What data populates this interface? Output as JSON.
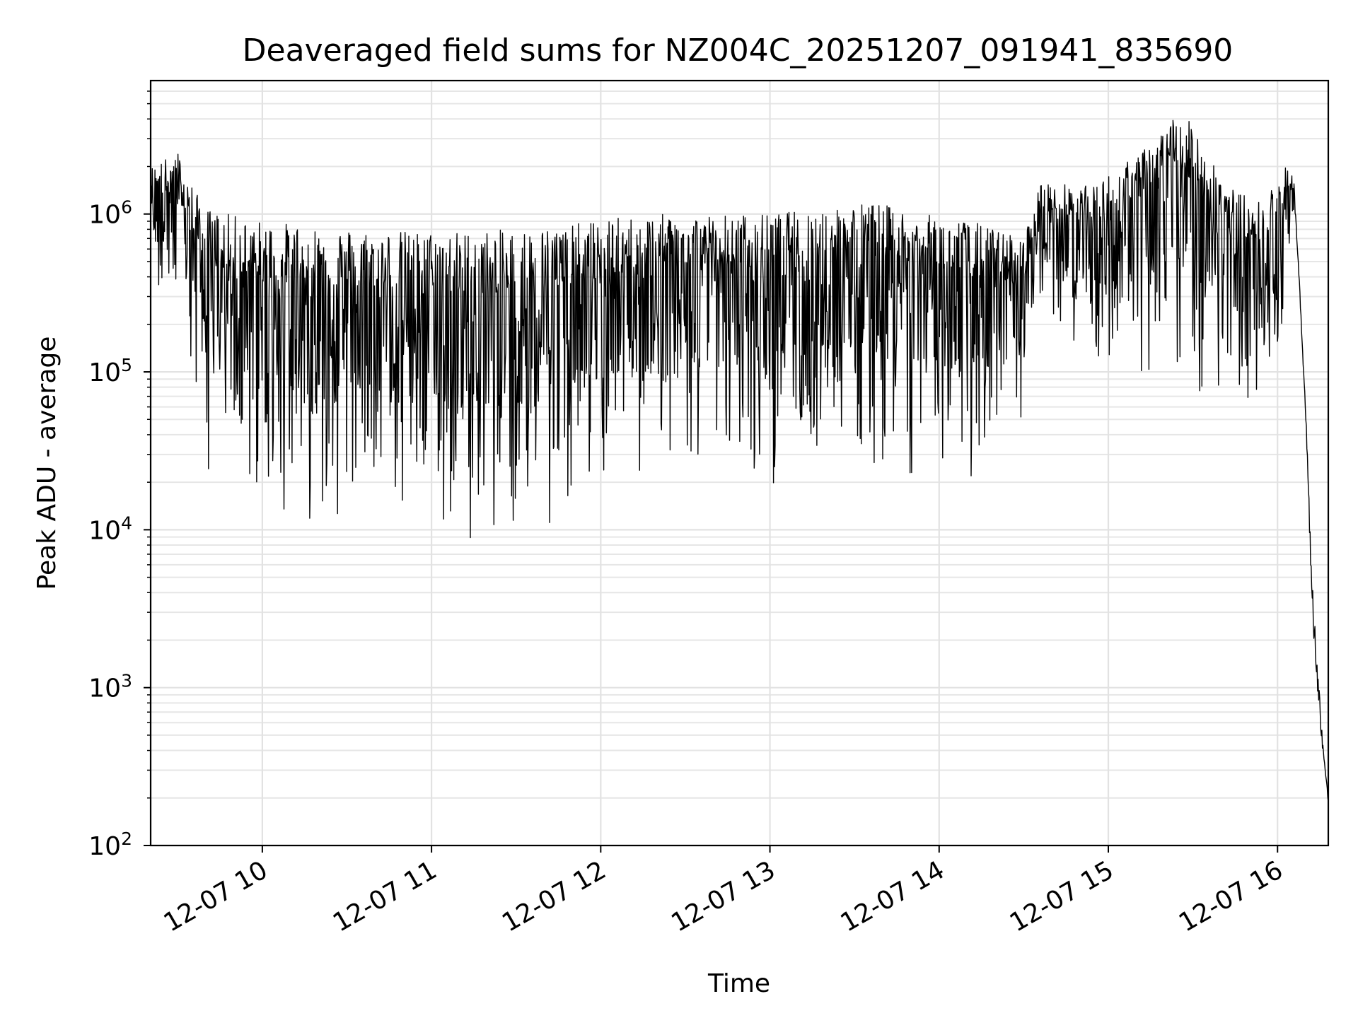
{
  "chart_data": {
    "type": "line",
    "title": "Deaveraged field sums for NZ004C_20251207_091941_835690",
    "xlabel": "Time",
    "ylabel": "Peak ADU - average",
    "yscale": "log",
    "ylim": [
      100,
      7000000
    ],
    "xlim_hours": [
      9.34,
      16.3
    ],
    "grid": true,
    "x_ticks": [
      {
        "hour": 10,
        "label": "12-07 10"
      },
      {
        "hour": 11,
        "label": "12-07 11"
      },
      {
        "hour": 12,
        "label": "12-07 12"
      },
      {
        "hour": 13,
        "label": "12-07 13"
      },
      {
        "hour": 14,
        "label": "12-07 14"
      },
      {
        "hour": 15,
        "label": "12-07 15"
      },
      {
        "hour": 16,
        "label": "12-07 16"
      }
    ],
    "y_ticks": [
      {
        "value": 100,
        "base": "10",
        "exp": "2"
      },
      {
        "value": 1000,
        "base": "10",
        "exp": "3"
      },
      {
        "value": 10000,
        "base": "10",
        "exp": "4"
      },
      {
        "value": 100000,
        "base": "10",
        "exp": "5"
      },
      {
        "value": 1000000,
        "base": "10",
        "exp": "6"
      }
    ],
    "series": [
      {
        "name": "Peak ADU - average",
        "color": "#000000",
        "envelope": {
          "hour": [
            9.34,
            9.5,
            9.65,
            9.8,
            10.0,
            10.3,
            10.6,
            10.9,
            11.2,
            11.5,
            11.8,
            12.1,
            12.4,
            12.7,
            13.0,
            13.3,
            13.6,
            13.9,
            14.2,
            14.5,
            14.6,
            14.9,
            15.2,
            15.4,
            15.55,
            15.7,
            15.9,
            16.05,
            16.1,
            16.13,
            16.17,
            16.2,
            16.23,
            16.27,
            16.3
          ],
          "upper": [
            2000000,
            2500000,
            1100000,
            1000000,
            900000,
            850000,
            800000,
            780000,
            780000,
            800000,
            850000,
            950000,
            1000000,
            1000000,
            1000000,
            1100000,
            1200000,
            1000000,
            900000,
            700000,
            1600000,
            1500000,
            2500000,
            4300000,
            3500000,
            1500000,
            1200000,
            2000000,
            1700000,
            400000,
            50000,
            8000,
            2000,
            500,
            200
          ],
          "lower": [
            300000,
            150000,
            20000,
            15000,
            12000,
            10000,
            12000,
            8000,
            8000,
            7000,
            12000,
            15000,
            20000,
            20000,
            18000,
            25000,
            25000,
            20000,
            15000,
            30000,
            200000,
            100000,
            80000,
            70000,
            60000,
            60000,
            50000,
            200000,
            1000000,
            300000,
            40000,
            2500,
            900,
            300,
            180
          ]
        },
        "min_value": 180,
        "max_value": 4300000
      }
    ]
  }
}
